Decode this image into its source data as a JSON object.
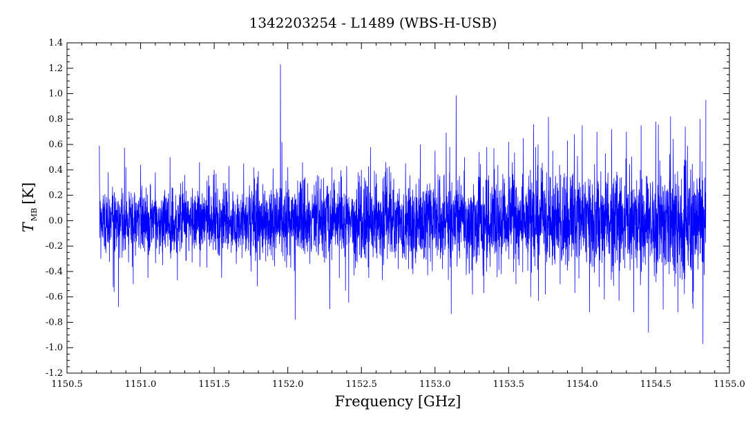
{
  "chart_data": {
    "type": "line",
    "title": "1342203254 - L1489 (WBS-H-USB)",
    "xlabel": "Frequency [GHz]",
    "ylabel_symbol": "T",
    "ylabel_subscript": "MB",
    "ylabel_unit": "[K]",
    "xlim": [
      1150.5,
      1155.0
    ],
    "ylim": [
      -1.2,
      1.4
    ],
    "x_ticks": [
      "1150.5",
      "1151.0",
      "1151.5",
      "1152.0",
      "1152.5",
      "1153.0",
      "1153.5",
      "1154.0",
      "1154.5",
      "1155.0"
    ],
    "y_ticks": [
      "-1.2",
      "-1.0",
      "-0.8",
      "-0.6",
      "-0.4",
      "-0.2",
      "0.0",
      "0.2",
      "0.4",
      "0.6",
      "0.8",
      "1.0",
      "1.2",
      "1.4"
    ],
    "grid": false,
    "line_color": "#0000ff",
    "series": [
      {
        "x": [
          1150.72,
          1150.73,
          1150.78,
          1150.82,
          1150.85,
          1150.9,
          1150.95,
          1151.0,
          1151.05,
          1151.1,
          1151.15,
          1151.2,
          1151.25,
          1151.3,
          1151.35,
          1151.4,
          1151.45,
          1151.5,
          1151.55,
          1151.6,
          1151.65,
          1151.7,
          1151.75,
          1151.8,
          1151.85,
          1151.9,
          1151.93,
          1151.95,
          1151.96,
          1151.98,
          1152.0,
          1152.03,
          1152.05,
          1152.1,
          1152.15,
          1152.2,
          1152.25,
          1152.3,
          1152.35,
          1152.4,
          1152.45,
          1152.5,
          1152.55,
          1152.6,
          1152.65,
          1152.7,
          1152.75,
          1152.8,
          1152.85,
          1152.9,
          1152.95,
          1153.0,
          1153.05,
          1153.1,
          1153.15,
          1153.2,
          1153.25,
          1153.3,
          1153.35,
          1153.4,
          1153.45,
          1153.5,
          1153.55,
          1153.6,
          1153.65,
          1153.7,
          1153.75,
          1153.8,
          1153.85,
          1153.9,
          1153.95,
          1154.0,
          1154.05,
          1154.1,
          1154.15,
          1154.2,
          1154.25,
          1154.3,
          1154.35,
          1154.4,
          1154.45,
          1154.5,
          1154.55,
          1154.6,
          1154.65,
          1154.7,
          1154.75,
          1154.8,
          1154.82,
          1154.84
        ],
        "y": [
          0.59,
          -0.3,
          0.38,
          -0.56,
          -0.68,
          0.42,
          -0.5,
          0.44,
          -0.45,
          0.38,
          -0.35,
          0.5,
          -0.47,
          0.36,
          -0.33,
          0.46,
          -0.37,
          0.4,
          -0.45,
          0.43,
          -0.34,
          0.45,
          -0.4,
          0.39,
          -0.32,
          0.41,
          0.2,
          1.23,
          0.62,
          -0.32,
          0.42,
          0.1,
          -0.78,
          0.46,
          -0.34,
          0.36,
          -0.33,
          0.42,
          -0.45,
          0.43,
          -0.43,
          0.4,
          -0.45,
          0.37,
          -0.35,
          0.38,
          -0.38,
          0.45,
          -0.42,
          0.6,
          -0.43,
          0.55,
          -0.38,
          0.58,
          -0.36,
          0.5,
          -0.39,
          0.54,
          -0.4,
          0.57,
          -0.42,
          0.62,
          -0.5,
          0.65,
          -0.6,
          0.6,
          -0.58,
          0.55,
          -0.5,
          0.63,
          -0.57,
          0.75,
          -0.72,
          0.7,
          -0.62,
          0.72,
          -0.63,
          0.7,
          -0.72,
          0.75,
          -0.88,
          0.78,
          -0.7,
          0.82,
          -0.72,
          0.74,
          -0.65,
          0.8,
          -0.97,
          0.95
        ]
      }
    ]
  }
}
